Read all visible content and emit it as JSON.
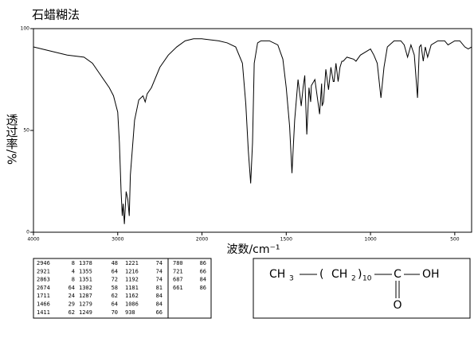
{
  "chart_data": {
    "type": "line",
    "title": "石蜡糊法",
    "y_label": "透过率/%",
    "x_label": "波数/cm⁻¹",
    "xlim": [
      4000,
      400
    ],
    "ylim": [
      0,
      100
    ],
    "xticks": [
      4000,
      3000,
      2000,
      1500,
      1000,
      500
    ],
    "yticks": [
      0,
      50,
      100
    ],
    "color": "#000000",
    "x": [
      4000,
      3800,
      3600,
      3400,
      3300,
      3200,
      3100,
      3050,
      3000,
      2980,
      2960,
      2946,
      2935,
      2921,
      2900,
      2880,
      2863,
      2850,
      2800,
      2750,
      2700,
      2674,
      2650,
      2600,
      2500,
      2400,
      2300,
      2200,
      2100,
      2000,
      1900,
      1850,
      1800,
      1760,
      1740,
      1725,
      1711,
      1700,
      1690,
      1670,
      1650,
      1600,
      1550,
      1520,
      1500,
      1480,
      1466,
      1450,
      1430,
      1411,
      1400,
      1390,
      1378,
      1365,
      1355,
      1351,
      1330,
      1302,
      1290,
      1287,
      1279,
      1265,
      1249,
      1235,
      1221,
      1216,
      1205,
      1192,
      1181,
      1170,
      1162,
      1140,
      1100,
      1086,
      1060,
      1000,
      980,
      960,
      938,
      920,
      900,
      860,
      820,
      800,
      780,
      760,
      740,
      721,
      710,
      700,
      687,
      675,
      661,
      640,
      600,
      560,
      540,
      500,
      470,
      440,
      420,
      400
    ],
    "values": [
      91,
      89,
      87,
      86,
      83,
      77,
      71,
      67,
      59,
      44,
      20,
      8,
      14,
      4,
      20,
      16,
      8,
      28,
      55,
      65,
      67,
      64,
      68,
      71,
      81,
      87,
      91,
      94,
      95,
      95,
      94,
      93,
      91,
      83,
      63,
      40,
      24,
      44,
      83,
      93,
      94,
      94,
      92,
      85,
      71,
      52,
      29,
      55,
      75,
      62,
      71,
      77,
      48,
      71,
      64,
      72,
      75,
      58,
      73,
      62,
      64,
      80,
      70,
      81,
      74,
      74,
      83,
      74,
      81,
      84,
      84,
      86,
      85,
      84,
      87,
      90,
      87,
      83,
      66,
      81,
      91,
      94,
      94,
      92,
      86,
      92,
      87,
      66,
      91,
      92,
      84,
      91,
      86,
      92,
      94,
      94,
      92,
      94,
      94,
      91,
      90,
      91
    ]
  },
  "peak_table": [
    [
      [
        2946,
        8
      ],
      [
        2921,
        4
      ],
      [
        2863,
        8
      ],
      [
        2674,
        64
      ],
      [
        1711,
        24
      ],
      [
        1466,
        29
      ],
      [
        1411,
        62
      ]
    ],
    [
      [
        1378,
        48
      ],
      [
        1355,
        64
      ],
      [
        1351,
        72
      ],
      [
        1302,
        58
      ],
      [
        1287,
        62
      ],
      [
        1279,
        64
      ],
      [
        1249,
        70
      ]
    ],
    [
      [
        1221,
        74
      ],
      [
        1216,
        74
      ],
      [
        1192,
        74
      ],
      [
        1181,
        81
      ],
      [
        1162,
        84
      ],
      [
        1086,
        84
      ],
      [
        938,
        66
      ]
    ],
    [
      [
        780,
        86
      ],
      [
        721,
        66
      ],
      [
        687,
        84
      ],
      [
        661,
        86
      ]
    ]
  ],
  "structure": {
    "groups": [
      "CH",
      "(",
      "CH",
      ")",
      "C",
      "OH",
      "O"
    ],
    "subscripts": [
      "3",
      "2",
      "10"
    ]
  }
}
